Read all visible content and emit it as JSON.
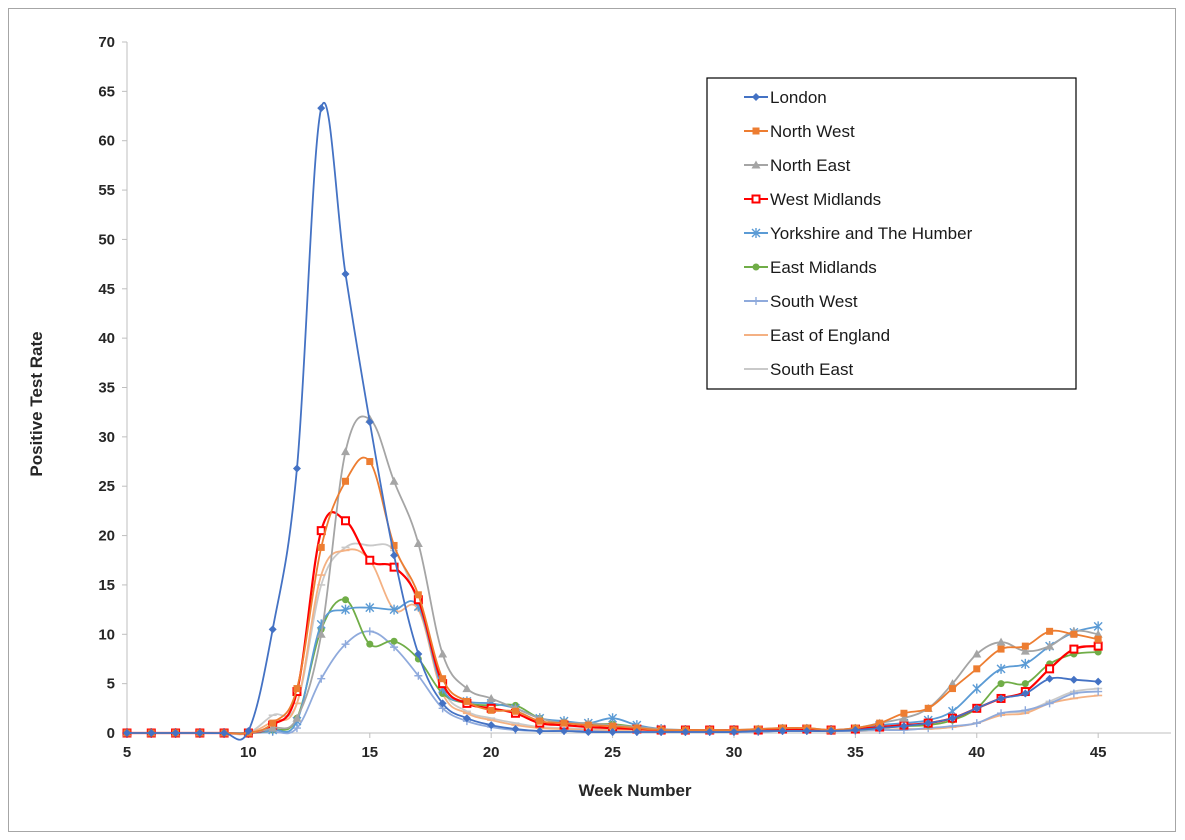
{
  "chart_data": {
    "type": "line",
    "title": "",
    "xlabel": "Week Number",
    "ylabel": "Positive Test Rate",
    "xlim": [
      5,
      48
    ],
    "ylim": [
      0,
      70
    ],
    "x_ticks": [
      5,
      10,
      15,
      20,
      25,
      30,
      35,
      40,
      45
    ],
    "y_ticks": [
      0,
      5,
      10,
      15,
      20,
      25,
      30,
      35,
      40,
      45,
      50,
      55,
      60,
      65,
      70
    ],
    "grid": false,
    "legend": "top-right",
    "x": [
      5,
      6,
      7,
      8,
      9,
      10,
      11,
      12,
      13,
      14,
      15,
      16,
      17,
      18,
      19,
      20,
      21,
      22,
      23,
      24,
      25,
      26,
      27,
      28,
      29,
      30,
      31,
      32,
      33,
      34,
      35,
      36,
      37,
      38,
      39,
      40,
      41,
      42,
      43,
      44,
      45
    ],
    "series": [
      {
        "name": "London",
        "color": "#4472C4",
        "marker": "diamond",
        "values": [
          0,
          0,
          0,
          0,
          0,
          0.2,
          10.5,
          26.8,
          63.3,
          46.5,
          31.5,
          18,
          8,
          3,
          1.5,
          0.8,
          0.4,
          0.2,
          0.2,
          0.1,
          0.1,
          0.1,
          0.1,
          0.1,
          0.1,
          0.1,
          0.2,
          0.2,
          0.2,
          0.2,
          0.3,
          0.5,
          0.7,
          1,
          1.5,
          2.5,
          3.5,
          4,
          5.5,
          5.4,
          5.2
        ]
      },
      {
        "name": "North West",
        "color": "#ED7D31",
        "marker": "square",
        "values": [
          0,
          0,
          0,
          0,
          0,
          0,
          1,
          4.5,
          18.8,
          25.5,
          27.5,
          19,
          14,
          5.5,
          3.2,
          2.3,
          2.2,
          1.2,
          1,
          0.8,
          0.7,
          0.5,
          0.3,
          0.3,
          0.3,
          0.3,
          0.4,
          0.5,
          0.5,
          0.3,
          0.5,
          1,
          2,
          2.5,
          4.5,
          6.5,
          8.5,
          8.8,
          10.3,
          10,
          9.5
        ]
      },
      {
        "name": "North East",
        "color": "#A5A5A5",
        "marker": "triangle",
        "values": [
          0,
          0,
          0,
          0,
          0,
          0,
          0.5,
          1.5,
          10,
          28.5,
          31.8,
          25.5,
          19.2,
          8,
          4.5,
          3.5,
          2.5,
          1.5,
          1,
          1,
          0.8,
          0.6,
          0.4,
          0.3,
          0.3,
          0.3,
          0.4,
          0.5,
          0.5,
          0.3,
          0.5,
          1,
          1.5,
          2.5,
          5,
          8,
          9.2,
          8.3,
          8.8,
          10.3,
          10
        ]
      },
      {
        "name": "West Midlands",
        "color": "#FF0000",
        "marker": "square-hollow",
        "values": [
          0,
          0,
          0,
          0,
          0,
          0,
          0.8,
          4.2,
          20.5,
          21.5,
          17.5,
          16.8,
          13.5,
          5,
          3,
          2.5,
          2,
          1,
          0.8,
          0.6,
          0.5,
          0.4,
          0.3,
          0.3,
          0.3,
          0.3,
          0.3,
          0.4,
          0.4,
          0.3,
          0.4,
          0.6,
          0.8,
          1,
          1.5,
          2.5,
          3.5,
          4.2,
          6.5,
          8.5,
          8.8
        ]
      },
      {
        "name": "Yorkshire and The Humber",
        "color": "#5B9BD5",
        "marker": "asterisk",
        "values": [
          0,
          0,
          0,
          0,
          0,
          0,
          0.3,
          1.2,
          11,
          12.5,
          12.7,
          12.5,
          12.8,
          4.5,
          3.2,
          3,
          2.5,
          1.5,
          1.2,
          1,
          1.5,
          0.8,
          0.4,
          0.3,
          0.3,
          0.3,
          0.3,
          0.4,
          0.4,
          0.3,
          0.4,
          0.8,
          1,
          1.3,
          2.2,
          4.5,
          6.5,
          7,
          8.8,
          10.2,
          10.8
        ]
      },
      {
        "name": "East Midlands",
        "color": "#70AD47",
        "marker": "circle",
        "values": [
          0,
          0,
          0,
          0,
          0,
          0,
          0.3,
          1.5,
          10.5,
          13.5,
          9,
          9.3,
          7.5,
          4,
          3,
          2.8,
          2.8,
          1.5,
          1.1,
          0.9,
          0.9,
          0.6,
          0.3,
          0.3,
          0.3,
          0.3,
          0.3,
          0.4,
          0.4,
          0.3,
          0.3,
          0.5,
          0.7,
          0.8,
          1.3,
          2.5,
          5,
          5,
          7,
          8,
          8.2
        ]
      },
      {
        "name": "South West",
        "color": "#8FAADC",
        "marker": "plus",
        "values": [
          0,
          0,
          0,
          0,
          0,
          0,
          0.1,
          0.5,
          5.5,
          9,
          10.3,
          8.7,
          5.8,
          2.5,
          1.2,
          0.6,
          0.3,
          0.2,
          0.2,
          0.2,
          0.1,
          0.1,
          0.1,
          0.1,
          0.1,
          0.1,
          0.1,
          0.2,
          0.2,
          0.2,
          0.2,
          0.3,
          0.3,
          0.5,
          0.7,
          1,
          2,
          2.3,
          3,
          4,
          4.2
        ]
      },
      {
        "name": "East of England",
        "color": "#F4B183",
        "marker": "dash",
        "values": [
          0,
          0,
          0,
          0,
          0,
          0,
          1.2,
          3,
          16,
          18.5,
          17.5,
          12.5,
          12.5,
          4,
          2,
          1.3,
          0.8,
          0.5,
          0.4,
          0.3,
          0.3,
          0.3,
          0.2,
          0.2,
          0.2,
          0.2,
          0.2,
          0.3,
          0.3,
          0.2,
          0.2,
          0.3,
          0.4,
          0.4,
          0.6,
          1,
          1.8,
          2,
          3,
          3.5,
          3.8
        ]
      },
      {
        "name": "South East",
        "color": "#C9C9C9",
        "marker": "dash",
        "values": [
          0,
          0,
          0,
          0,
          0,
          0,
          1.8,
          3,
          15,
          18.8,
          19,
          18.5,
          13,
          4.5,
          2.2,
          1.5,
          1,
          0.6,
          0.5,
          0.4,
          0.4,
          0.3,
          0.3,
          0.2,
          0.2,
          0.2,
          0.2,
          0.3,
          0.3,
          0.2,
          0.2,
          0.3,
          0.4,
          0.4,
          0.6,
          1,
          2,
          2.2,
          3.2,
          4.2,
          4.5
        ]
      }
    ]
  }
}
